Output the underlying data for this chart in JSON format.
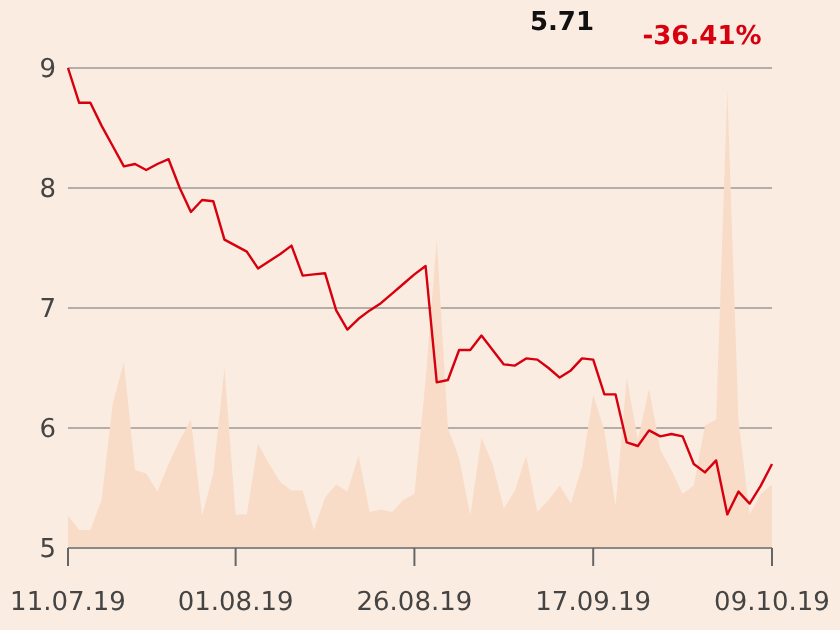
{
  "chart_data": {
    "type": "line",
    "annotations": [
      "5.71",
      "-36.41%"
    ],
    "categories": [
      "11.07.19",
      null,
      null,
      null,
      null,
      null,
      null,
      null,
      null,
      null,
      null,
      null,
      null,
      null,
      null,
      "01.08.19",
      null,
      null,
      null,
      null,
      null,
      null,
      null,
      null,
      null,
      null,
      null,
      null,
      null,
      null,
      null,
      "26.08.19",
      null,
      null,
      null,
      null,
      null,
      null,
      null,
      null,
      null,
      null,
      null,
      null,
      null,
      null,
      null,
      "17.09.19",
      null,
      null,
      null,
      null,
      null,
      null,
      null,
      null,
      null,
      null,
      null,
      null,
      null,
      null,
      null,
      "09.10.19"
    ],
    "series": [
      {
        "type": "area",
        "color": "#f8dcc8",
        "values": [
          5.27,
          5.15,
          5.15,
          5.4,
          6.2,
          6.55,
          5.65,
          5.62,
          5.47,
          5.7,
          5.9,
          6.07,
          5.27,
          5.62,
          6.5,
          5.28,
          5.28,
          5.87,
          5.7,
          5.55,
          5.48,
          5.48,
          5.15,
          5.42,
          5.53,
          5.47,
          5.77,
          5.3,
          5.32,
          5.3,
          5.4,
          5.45,
          6.4,
          7.57,
          6.0,
          5.75,
          5.27,
          5.92,
          5.7,
          5.33,
          5.48,
          5.77,
          5.3,
          5.4,
          5.52,
          5.37,
          5.68,
          6.28,
          5.98,
          5.35,
          6.42,
          5.9,
          6.33,
          5.82,
          5.65,
          5.45,
          5.52,
          6.02,
          6.07,
          8.82,
          6.07,
          5.28,
          5.45,
          5.53
        ]
      },
      {
        "color": "#d7000f",
        "values": [
          9.0,
          8.71,
          8.71,
          8.52,
          8.35,
          8.18,
          8.2,
          8.15,
          8.2,
          8.24,
          8.0,
          7.8,
          7.9,
          7.89,
          7.57,
          7.52,
          7.47,
          7.33,
          7.39,
          7.45,
          7.52,
          7.27,
          7.28,
          7.29,
          6.98,
          6.82,
          6.91,
          6.98,
          7.04,
          7.12,
          7.2,
          7.28,
          7.35,
          6.38,
          6.4,
          6.65,
          6.65,
          6.77,
          6.65,
          6.53,
          6.52,
          6.58,
          6.57,
          6.5,
          6.42,
          6.48,
          6.58,
          6.57,
          6.28,
          6.28,
          5.88,
          5.85,
          5.98,
          5.93,
          5.95,
          5.93,
          5.7,
          5.63,
          5.73,
          5.28,
          5.47,
          5.37,
          5.52,
          5.7
        ]
      }
    ],
    "ylim": [
      5,
      9
    ],
    "yticks": [
      5,
      6,
      7,
      8,
      9
    ],
    "grid": "y"
  }
}
